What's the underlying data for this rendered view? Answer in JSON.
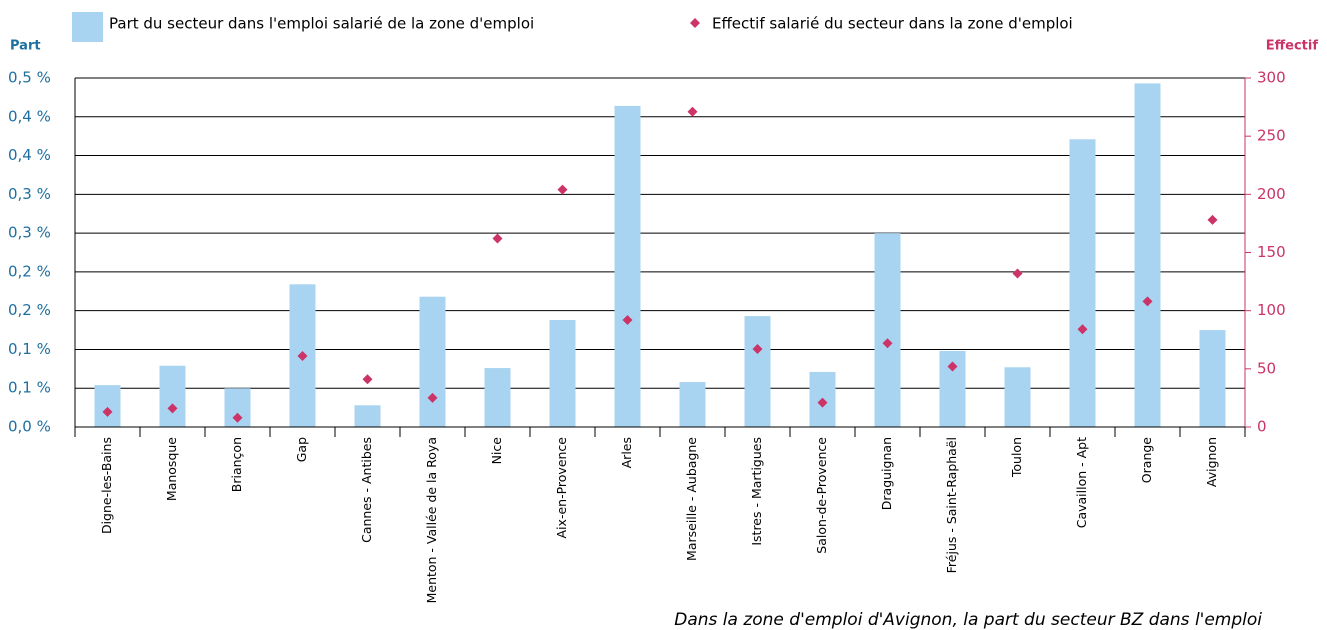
{
  "chart_data": {
    "type": "bar-scatter",
    "legend_bars": "Part du secteur dans l'emploi salarié de la zone d'emploi",
    "y_label": "Part",
    "y2_label": "Effectif",
    "annotation": "Dans la zone d'emploi d'Avignon, la part du secteur BZ dans l'emploi",
    "categories": [
      "Digne-les-Bains",
      "Manosque",
      "Briançon",
      "Gap",
      "Cannes - Antibes",
      "Menton - Vallée de la Roya",
      "Nice",
      "Aix-en-Provence",
      "Arles",
      "Marseille - Aubagne",
      "Istres - Martigues",
      "Salon-de-Provence",
      "Draguignan",
      "Fréjus - Saint-Raphaël",
      "Toulon",
      "Cavaillon - Apt",
      "Orange",
      "Avignon"
    ],
    "series": [
      {
        "name": "Part du secteur dans l'emploi salarié de la zone d'emploi",
        "color": "#a8d4f2",
        "type": "bar",
        "values": [
          0.054,
          0.079,
          0.05,
          0.184,
          0.028,
          0.168,
          0.076,
          0.138,
          0.414,
          0.058,
          0.143,
          0.071,
          0.25,
          0.098,
          0.077,
          0.371,
          0.443,
          0.125
        ]
      },
      {
        "name": "Effectif salarié du secteur dans la zone d'emploi",
        "color": "#cc3366",
        "type": "scatter",
        "axis": "y2",
        "values": [
          13,
          16,
          8,
          61,
          41,
          25,
          162,
          204,
          92,
          271,
          67,
          21,
          72,
          52,
          132,
          84,
          108,
          178
        ]
      }
    ],
    "ylim": [
      0,
      0.45
    ],
    "yticks": [
      {
        "value": 0,
        "label": "0,0 %"
      },
      {
        "value": 0.05,
        "label": "0,1 %"
      },
      {
        "value": 0.1,
        "label": "0,1 %"
      },
      {
        "value": 0.15,
        "label": "0,2 %"
      },
      {
        "value": 0.2,
        "label": "0,2 %"
      },
      {
        "value": 0.25,
        "label": "0,3 %"
      },
      {
        "value": 0.3,
        "label": "0,3 %"
      },
      {
        "value": 0.35,
        "label": "0,4 %"
      },
      {
        "value": 0.4,
        "label": "0,4 %"
      },
      {
        "value": 0.45,
        "label": "0,5 %"
      }
    ],
    "y2lim": [
      0,
      300
    ],
    "y2ticks": [
      0,
      50,
      100,
      150,
      200,
      250,
      300
    ],
    "grid": true
  }
}
